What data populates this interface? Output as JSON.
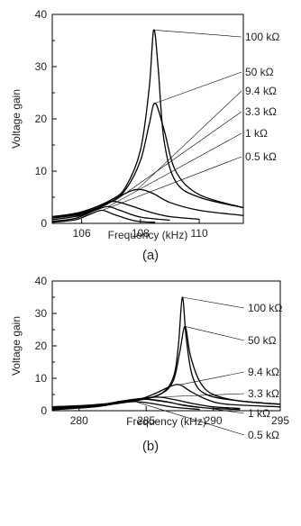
{
  "chart_data": [
    {
      "type": "line",
      "panel_label": "(a)",
      "xlabel": "Frequency (kHz)",
      "ylabel": "Voltage gain",
      "xlim": [
        105,
        111.5
      ],
      "ylim": [
        0,
        40
      ],
      "x_ticks": [
        106,
        108,
        110
      ],
      "y_ticks": [
        0,
        10,
        20,
        30,
        40
      ],
      "grid": false,
      "series": [
        {
          "name": "100 kΩ",
          "label_y": 36,
          "peak_x": 108.5,
          "peak_y": 37,
          "hw": 0.18,
          "floor": 1.5,
          "points": [
            [
              105,
              1.3
            ],
            [
              106,
              2.2
            ],
            [
              107,
              4.5
            ],
            [
              107.5,
              7
            ],
            [
              108,
              14
            ],
            [
              108.3,
              26
            ],
            [
              108.45,
              37
            ],
            [
              108.6,
              30
            ],
            [
              108.8,
              16
            ],
            [
              109.2,
              8
            ],
            [
              110,
              5
            ],
            [
              111.5,
              3
            ]
          ]
        },
        {
          "name": "50 kΩ",
          "label_y": 26.5,
          "peak_x": 108.5,
          "peak_y": 23,
          "hw": 0.3,
          "floor": 1.5,
          "points": [
            [
              105,
              1.2
            ],
            [
              106,
              2
            ],
            [
              107,
              4.2
            ],
            [
              107.5,
              6.5
            ],
            [
              108,
              12
            ],
            [
              108.3,
              19
            ],
            [
              108.5,
              23
            ],
            [
              108.8,
              18
            ],
            [
              109.2,
              10
            ],
            [
              110,
              5.5
            ],
            [
              111.5,
              3
            ]
          ]
        },
        {
          "name": "9.4 kΩ",
          "label_y": 21,
          "peak_x": 107.9,
          "peak_y": 6.5,
          "points": [
            [
              105,
              1
            ],
            [
              106,
              1.8
            ],
            [
              106.8,
              3.5
            ],
            [
              107.4,
              5.5
            ],
            [
              107.9,
              6.5
            ],
            [
              108.4,
              5.8
            ],
            [
              109,
              4
            ],
            [
              110,
              2.5
            ],
            [
              111.5,
              1.5
            ]
          ]
        },
        {
          "name": "3.3 kΩ",
          "label_y": 15.5,
          "peak_x": 107.1,
          "peak_y": 4.2,
          "points": [
            [
              105,
              0.7
            ],
            [
              106,
              1.6
            ],
            [
              106.7,
              3.5
            ],
            [
              107.1,
              4.2
            ],
            [
              107.6,
              3.5
            ],
            [
              108.3,
              2.2
            ],
            [
              109,
              1.3
            ],
            [
              110,
              0.8
            ]
          ]
        },
        {
          "name": "1 kΩ",
          "label_y": 10.5,
          "peak_x": 106.9,
          "peak_y": 3.2,
          "points": [
            [
              105,
              0.4
            ],
            [
              105.8,
              1
            ],
            [
              106.5,
              2.6
            ],
            [
              106.9,
              3.2
            ],
            [
              107.3,
              2.5
            ],
            [
              108,
              1.2
            ],
            [
              109,
              0.6
            ]
          ]
        },
        {
          "name": "0.5 kΩ",
          "label_y": 5,
          "peak_x": 106.7,
          "peak_y": 2.5,
          "points": [
            [
              105,
              0.2
            ],
            [
              105.8,
              0.7
            ],
            [
              106.3,
              1.8
            ],
            [
              106.7,
              2.5
            ],
            [
              107.1,
              1.7
            ],
            [
              107.8,
              0.5
            ],
            [
              108.5,
              0.2
            ]
          ]
        }
      ]
    },
    {
      "type": "line",
      "panel_label": "(b)",
      "xlabel": "Frequency (kHz)",
      "ylabel": "Voltage gain",
      "xlim": [
        278,
        295
      ],
      "ylim": [
        0,
        40
      ],
      "x_ticks": [
        280,
        285,
        290,
        295
      ],
      "y_ticks": [
        0,
        10,
        20,
        30,
        40
      ],
      "grid": false,
      "series": [
        {
          "name": "100 kΩ",
          "label_y": 32.5,
          "points": [
            [
              278,
              1.2
            ],
            [
              281,
              1.8
            ],
            [
              284,
              3
            ],
            [
              286,
              5
            ],
            [
              287,
              10
            ],
            [
              287.4,
              20
            ],
            [
              287.7,
              35
            ],
            [
              288,
              22
            ],
            [
              288.5,
              10
            ],
            [
              289.5,
              5
            ],
            [
              292,
              3
            ],
            [
              295,
              2
            ]
          ]
        },
        {
          "name": "50 kΩ",
          "label_y": 25,
          "peak_x": 287.9,
          "peak_y": 26,
          "points": [
            [
              278,
              1.2
            ],
            [
              281,
              1.7
            ],
            [
              284,
              3
            ],
            [
              286,
              5
            ],
            [
              287,
              9
            ],
            [
              287.5,
              18
            ],
            [
              287.9,
              26
            ],
            [
              288.3,
              17
            ],
            [
              289,
              9
            ],
            [
              290,
              5
            ],
            [
              292,
              3
            ],
            [
              295,
              2
            ]
          ]
        },
        {
          "name": "9.4 kΩ",
          "label_y": 17,
          "peak_x": 287.5,
          "peak_y": 8,
          "points": [
            [
              278,
              1
            ],
            [
              281,
              1.5
            ],
            [
              284,
              3
            ],
            [
              285.5,
              5
            ],
            [
              286.8,
              7.5
            ],
            [
              287.5,
              8
            ],
            [
              288.3,
              6
            ],
            [
              289.5,
              3.5
            ],
            [
              291,
              2
            ],
            [
              295,
              1.2
            ]
          ]
        },
        {
          "name": "3.3 kΩ",
          "label_y": 12,
          "peak_x": 285.8,
          "peak_y": 4.2,
          "points": [
            [
              278,
              0.8
            ],
            [
              281,
              1.5
            ],
            [
              283.5,
              3.2
            ],
            [
              285.8,
              4.2
            ],
            [
              287,
              3.5
            ],
            [
              288.5,
              2.2
            ],
            [
              290,
              1.2
            ],
            [
              292,
              0.7
            ]
          ]
        },
        {
          "name": "1 kΩ",
          "label_y": 7,
          "peak_x": 285,
          "peak_y": 3.5,
          "points": [
            [
              278,
              0.5
            ],
            [
              281,
              1.3
            ],
            [
              283,
              2.8
            ],
            [
              285,
              3.5
            ],
            [
              286.5,
              2.8
            ],
            [
              288,
              1.5
            ],
            [
              290,
              0.7
            ],
            [
              292,
              0.4
            ]
          ]
        },
        {
          "name": "0.5 kΩ",
          "label_y": 3,
          "peak_x": 284.2,
          "peak_y": 2.8,
          "points": [
            [
              278,
              0.3
            ],
            [
              281,
              1.1
            ],
            [
              283,
              2.3
            ],
            [
              284.2,
              2.8
            ],
            [
              285.5,
              2.2
            ],
            [
              287,
              1.1
            ],
            [
              289,
              0.4
            ]
          ]
        }
      ]
    }
  ]
}
